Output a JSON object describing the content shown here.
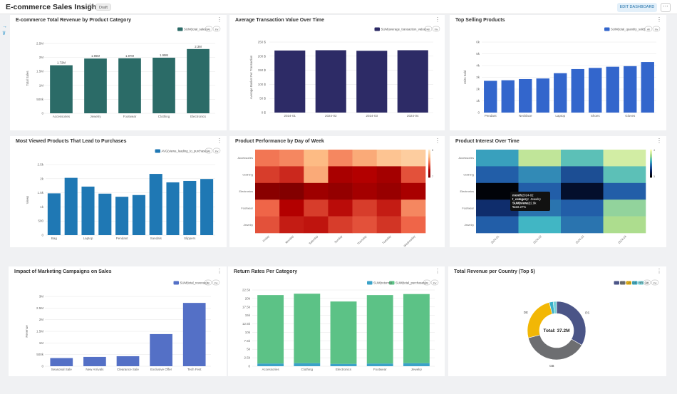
{
  "dashboard": {
    "title": "E-commerce Sales Insight",
    "draft_label": "Draft",
    "edit_label": "EDIT DASHBOARD",
    "more_label": "⋯",
    "star_icon": "star-icon",
    "side_icons": [
      "arrow-right-icon",
      "filter-icon"
    ]
  },
  "chips": {
    "all": "All",
    "inv": "Inv"
  },
  "charts": [
    {
      "id": "rev-category",
      "title": "E-commerce Total Revenue by Product Category",
      "chart_data": {
        "type": "bar",
        "categories": [
          "Accessories",
          "Jewelry",
          "Footwear",
          "Clothing",
          "Electronics"
        ],
        "series": [
          {
            "name": "SUM(total_sales)",
            "values": [
              1720000,
              1960000,
              1970000,
              1990000,
              2300000
            ],
            "color": "#2b6b67"
          }
        ],
        "data_labels": [
          "1.72M",
          "1.96M",
          "1.97M",
          "1.99M",
          "2.3M"
        ],
        "ylabel": "Total Sales",
        "yticks": [
          0,
          500000,
          1000000,
          1500000,
          2000000,
          2500000
        ],
        "ytick_labels": [
          "0",
          "500k",
          "1M",
          "1.5M",
          "2M",
          "2.5M"
        ],
        "ylim": [
          0,
          2500000
        ]
      }
    },
    {
      "id": "avg-transaction",
      "title": "Average Transaction Value Over Time",
      "chart_data": {
        "type": "bar",
        "categories": [
          "2024-01",
          "2024-02",
          "2024-03",
          "2024-04"
        ],
        "series": [
          {
            "name": "SUM(average_transaction_value)",
            "values": [
              220,
              221,
              219,
              221
            ],
            "color": "#2d2b66"
          }
        ],
        "ylabel": "Average Basket Per Transaction",
        "yticks": [
          0,
          50,
          100,
          150,
          200,
          250
        ],
        "ytick_labels": [
          "0 $",
          "50 $",
          "100 $",
          "150 $",
          "200 $",
          "250 $"
        ],
        "ylim": [
          0,
          250
        ]
      }
    },
    {
      "id": "top-selling",
      "title": "Top Selling Products",
      "chart_data": {
        "type": "bar",
        "categories": [
          "Pendant",
          "",
          "Necklace",
          "",
          "Laptop",
          "",
          "Shoes",
          "",
          "Gloves",
          ""
        ],
        "series": [
          {
            "name": "SUM(total_quantity_sold)",
            "values": [
              2700,
              2750,
              2850,
              2900,
              3350,
              3700,
              3800,
              3900,
              3950,
              4300
            ],
            "color": "#3366cc"
          }
        ],
        "ylabel": "Units Sold",
        "yticks": [
          0,
          1000,
          2000,
          3000,
          4000,
          5000,
          6000
        ],
        "ytick_labels": [
          "0",
          "1k",
          "2k",
          "3k",
          "4k",
          "5k",
          "6k"
        ],
        "ylim": [
          0,
          6000
        ]
      }
    },
    {
      "id": "viewed-purchases",
      "title": "Most Viewed Products That Lead to Purchases",
      "chart_data": {
        "type": "bar",
        "categories": [
          "Bag",
          "",
          "Laptop",
          "",
          "Pendant",
          "",
          "Sandals",
          "",
          "Slippers",
          ""
        ],
        "series": [
          {
            "name": "AVG(views_leading_to_purchase)",
            "values": [
              1480,
              2030,
              1720,
              1470,
              1360,
              1420,
              2170,
              1870,
              1920,
              1990
            ],
            "color": "#1f78b4"
          }
        ],
        "ylabel": "Views",
        "yticks": [
          0,
          500,
          1000,
          1500,
          2000,
          2500
        ],
        "ytick_labels": [
          "0",
          "500",
          "1k",
          "1.5k",
          "2k",
          "2.5k"
        ],
        "ylim": [
          0,
          2500
        ]
      }
    },
    {
      "id": "day-of-week",
      "title": "Product Performance by Day of Week",
      "chart_data": {
        "type": "heatmap",
        "x": [
          "Friday",
          "Monday",
          "Saturday",
          "Sunday",
          "Thursday",
          "Tuesday",
          "Wednesday"
        ],
        "y": [
          "Accessories",
          "Clothing",
          "Electronics",
          "Footwear",
          "Jewelry"
        ],
        "values": [
          [
            0.45,
            0.4,
            0.25,
            0.4,
            0.3,
            0.2,
            0.15
          ],
          [
            0.6,
            0.65,
            0.3,
            0.8,
            0.75,
            0.82,
            0.55
          ],
          [
            0.95,
            0.98,
            0.85,
            0.9,
            0.82,
            0.88,
            0.8
          ],
          [
            0.5,
            0.75,
            0.6,
            0.72,
            0.6,
            0.68,
            0.4
          ],
          [
            0.55,
            0.68,
            0.7,
            0.6,
            0.55,
            0.62,
            0.5
          ]
        ],
        "colorscale": [
          "#fee9c8",
          "#fdbb84",
          "#ef6548",
          "#b30000",
          "#7f0000"
        ],
        "colorbar_ticks": [
          "8",
          "7"
        ]
      }
    },
    {
      "id": "interest-time",
      "title": "Product Interest Over Time",
      "chart_data": {
        "type": "heatmap",
        "x": [
          "2024-01",
          "2024-02",
          "2024-03",
          "2024-04"
        ],
        "y": [
          "Accessories",
          "Clothing",
          "Electronics",
          "Footwear",
          "Jewelry"
        ],
        "values": [
          [
            0.45,
            0.15,
            0.35,
            0.1
          ],
          [
            0.6,
            0.5,
            0.65,
            0.35
          ],
          [
            0.98,
            0.6,
            0.9,
            0.6
          ],
          [
            0.75,
            0.55,
            0.6,
            0.25
          ],
          [
            0.6,
            0.4,
            0.55,
            0.2
          ]
        ],
        "colorscale": [
          "#f7fcb9",
          "#addd8e",
          "#41b6c4",
          "#225ea8",
          "#081d58",
          "#000000"
        ],
        "colorbar_ticks": [
          "4",
          "3"
        ],
        "tooltip": {
          "month_label": "month:",
          "month": "2024-02",
          "category_label": "t_category:",
          "category": "Jewelry",
          "views_label": "SUM(views):",
          "views": "2.9k",
          "pct_label": "%:",
          "pct": "18.27%"
        }
      }
    },
    {
      "id": "marketing",
      "title": "Impact of Marketing Campaigns on Sales",
      "chart_data": {
        "type": "bar",
        "categories": [
          "Seasonal Sale",
          "New Arrivals",
          "Clearance Sale",
          "Exclusive Offer",
          "Tech Fest"
        ],
        "series": [
          {
            "name": "SUM(total_revenue)",
            "values": [
              350000,
              400000,
              430000,
              1380000,
              2720000
            ],
            "color": "#5470c6"
          }
        ],
        "ylabel": "Revenue",
        "yticks": [
          0,
          500000,
          1000000,
          1500000,
          2000000,
          2500000,
          3000000
        ],
        "ytick_labels": [
          "0",
          "500k",
          "1M",
          "1.5M",
          "2M",
          "2.5M",
          "3M"
        ],
        "ylim": [
          0,
          3000000
        ]
      }
    },
    {
      "id": "returns",
      "title": "Return Rates Per Category",
      "chart_data": {
        "type": "bar",
        "stacked": true,
        "categories": [
          "Accessories",
          "Clothing",
          "Electronics",
          "Footwear",
          "Jewelry"
        ],
        "series": [
          {
            "name": "SUM(returns)",
            "values": [
              800,
              900,
              700,
              800,
              900
            ],
            "color": "#3ba2c8"
          },
          {
            "name": "SUM(total_purchases)",
            "values": [
              20200,
              20500,
              18400,
              20200,
              20400
            ],
            "color": "#5cc286"
          }
        ],
        "yticks": [
          0,
          2500,
          5000,
          7500,
          10000,
          12500,
          15000,
          17500,
          20000,
          22500
        ],
        "ytick_labels": [
          "0",
          "2.5k",
          "5k",
          "7.5k",
          "10k",
          "12.5k",
          "15k",
          "17.5k",
          "20k",
          "22.5k"
        ],
        "ylim": [
          0,
          22500
        ]
      }
    },
    {
      "id": "country",
      "title": "Total Revenue per Country (Top 5)",
      "chart_data": {
        "type": "pie",
        "donut": true,
        "center_label": "Total: 37.2M",
        "slices": [
          {
            "name": "ES",
            "value": 12.4,
            "color": "#4b5587"
          },
          {
            "name": "GB",
            "value": 14.0,
            "color": "#6d6e71"
          },
          {
            "name": "DE",
            "value": 9.3,
            "color": "#f2b705"
          },
          {
            "name": "HR",
            "value": 0.8,
            "color": "#3ab0c8"
          },
          {
            "name": "CY",
            "value": 0.7,
            "color": "#73d1d9"
          }
        ]
      }
    }
  ]
}
